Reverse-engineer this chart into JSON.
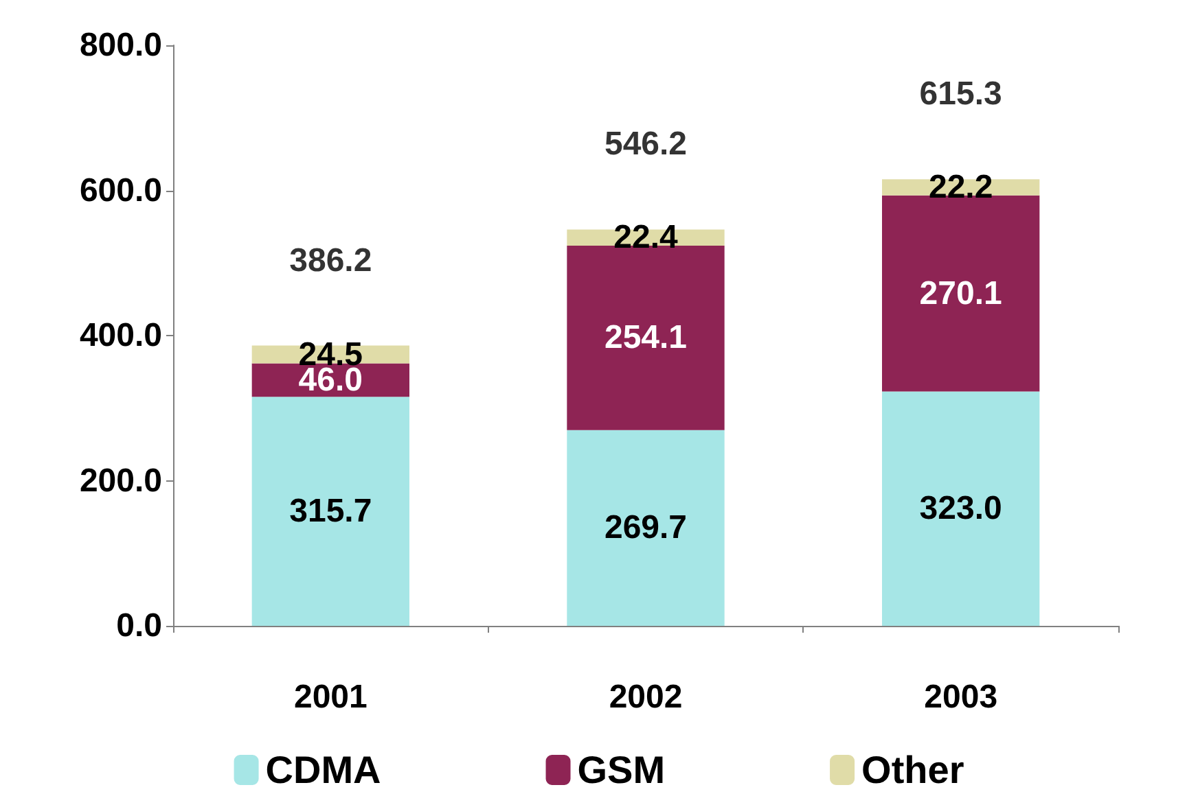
{
  "chart_data": {
    "type": "bar",
    "stacked": true,
    "categories": [
      "2001",
      "2002",
      "2003"
    ],
    "series": [
      {
        "name": "CDMA",
        "color": "#a6e6e6",
        "values": [
          315.7,
          269.7,
          323.0
        ],
        "value_labels": [
          "315.7",
          "269.7",
          "323.0"
        ]
      },
      {
        "name": "GSM",
        "color": "#8e2454",
        "values": [
          46.0,
          254.1,
          270.1
        ],
        "value_labels": [
          "46.0",
          "254.1",
          "270.1"
        ]
      },
      {
        "name": "Other",
        "color": "#e0dca8",
        "values": [
          24.5,
          22.4,
          22.2
        ],
        "value_labels": [
          "24.5",
          "22.4",
          "22.2"
        ]
      }
    ],
    "ylim": [
      0,
      800
    ],
    "yticks": [
      {
        "value": 0,
        "label": "0.0"
      },
      {
        "value": 200,
        "label": "200.0"
      },
      {
        "value": 400,
        "label": "400.0"
      },
      {
        "value": 600,
        "label": "600.0"
      },
      {
        "value": 800,
        "label": "800.0"
      }
    ],
    "totals": [
      "386.2",
      "546.2",
      "615.3"
    ],
    "grid": false,
    "legend": "bottom"
  }
}
